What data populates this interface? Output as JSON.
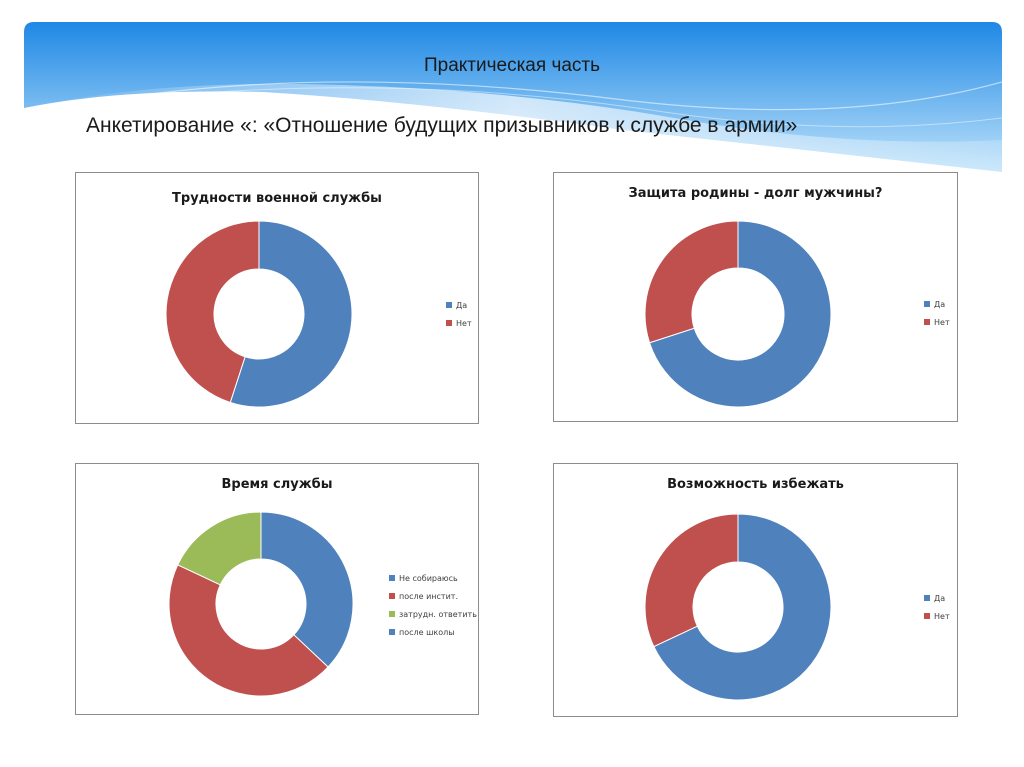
{
  "slide": {
    "title": "Практическая часть",
    "subtitle": "Анкетирование «: «Отношение будущих призывников к службе в армии»"
  },
  "colors": {
    "banner_top": "#1e88e5",
    "banner_bottom": "#bfe3fa",
    "blue": "#4f81bd",
    "red": "#c0504d",
    "green": "#9bbb59"
  },
  "chart_data": [
    {
      "type": "pie",
      "title": "Трудности военной службы",
      "legend_position": "right",
      "categories": [
        "Да",
        "Нет"
      ],
      "values": [
        55,
        45
      ],
      "colors": [
        "#4f81bd",
        "#c0504d"
      ]
    },
    {
      "type": "pie",
      "title": "Защита родины - долг мужчины?",
      "legend_position": "right",
      "categories": [
        "Да",
        "Нет"
      ],
      "values": [
        70,
        30
      ],
      "colors": [
        "#4f81bd",
        "#c0504d"
      ]
    },
    {
      "type": "pie",
      "title": "Время службы",
      "legend_position": "right",
      "categories": [
        "Не собираюсь",
        "после инстит.",
        "затрудн. ответить",
        "после школы"
      ],
      "values": [
        37,
        45,
        18,
        0
      ],
      "colors": [
        "#4f81bd",
        "#c0504d",
        "#9bbb59",
        "#4f81bd"
      ]
    },
    {
      "type": "pie",
      "title": "Возможность избежать",
      "legend_position": "right",
      "categories": [
        "Да",
        "Нет"
      ],
      "values": [
        68,
        32
      ],
      "colors": [
        "#4f81bd",
        "#c0504d"
      ]
    }
  ]
}
